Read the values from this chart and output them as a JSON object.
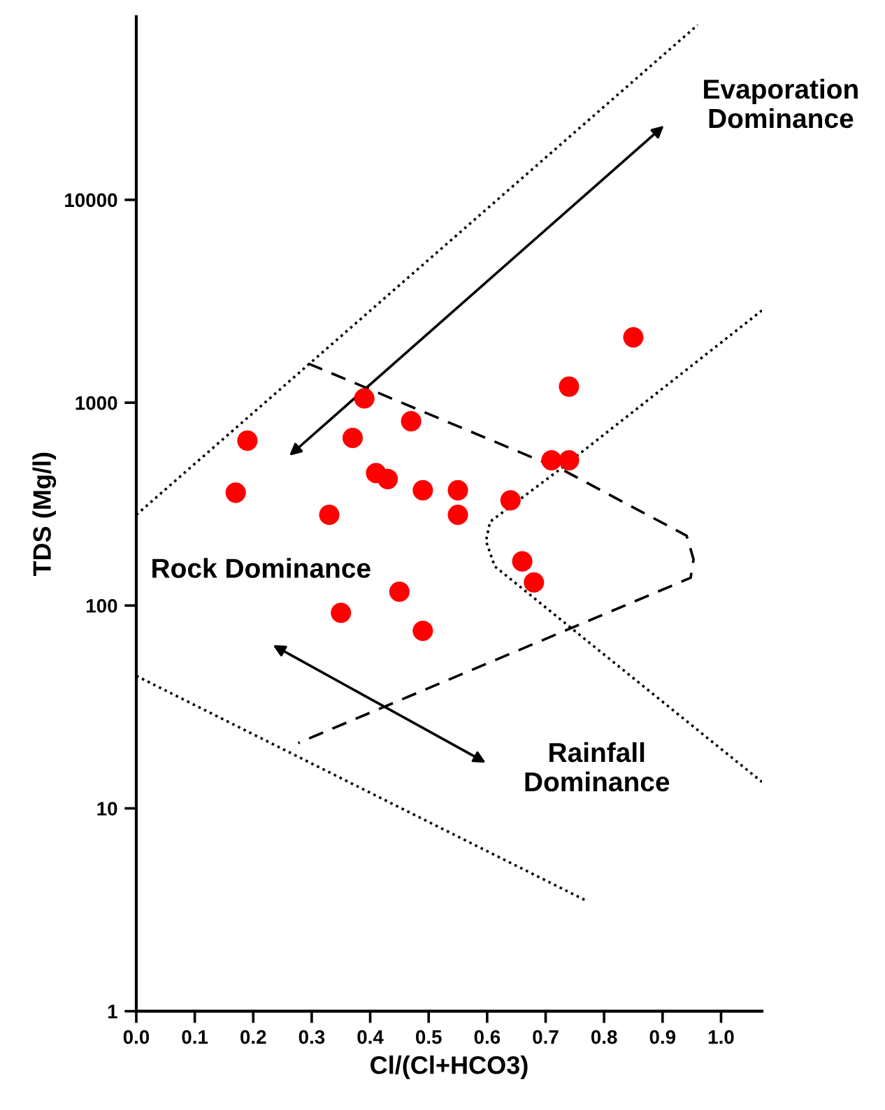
{
  "chart_data": {
    "type": "scatter",
    "xlabel": "Cl/(Cl+HCO3)",
    "ylabel": "TDS (Mg/l)",
    "annotations": [
      "Evaporation\nDominance",
      "Rock Dominance",
      "Rainfall\nDominance"
    ],
    "log": "y",
    "grid": false,
    "legend": false,
    "xlim": [
      0,
      1.07
    ],
    "ylim": [
      1,
      80000
    ],
    "xticks": [
      {
        "value": 0,
        "label": "0.0"
      },
      0.1,
      0.2,
      0.3,
      0.4,
      0.5,
      0.6,
      0.7,
      0.8,
      0.9,
      {
        "value": 1,
        "label": "1.0"
      }
    ],
    "yticks": [
      1,
      10,
      100,
      1000,
      10000
    ],
    "series": [
      {
        "color": "#ff0000",
        "marker": "circle",
        "x": [
          0.19,
          0.39,
          0.37,
          0.47,
          0.41,
          0.43,
          0.49,
          0.55,
          0.17,
          0.64,
          0.71,
          0.74,
          0.74,
          0.85,
          0.33,
          0.55,
          0.66,
          0.68,
          0.45,
          0.35,
          0.49
        ],
        "values": [
          650,
          1050,
          670,
          810,
          450,
          420,
          370,
          370,
          360,
          330,
          520,
          520,
          1200,
          2100,
          280,
          280,
          165,
          130,
          117,
          92,
          75
        ]
      },
      {
        "type": "line",
        "color": "#000000",
        "marker": "none",
        "line_style": "dotted",
        "x": [
          0,
          0.96
        ],
        "values": [
          280,
          72800
        ]
      },
      {
        "type": "line",
        "color": "#000000",
        "marker": "none",
        "line_style": "dotted",
        "x": [
          1.07,
          0.72,
          0.605,
          0.598,
          0.613,
          1.07
        ],
        "values": [
          2850,
          459,
          259,
          208,
          156,
          13.5
        ]
      },
      {
        "type": "line",
        "color": "#000000",
        "marker": "none",
        "line_style": "dotted",
        "x": [
          0,
          0.77
        ],
        "values": [
          45,
          3.5
        ]
      },
      {
        "type": "line",
        "color": "#000000",
        "marker": "none",
        "line_style": "dashed",
        "x": [
          0.294,
          0.733,
          0.941,
          0.953,
          0.948,
          0.277
        ],
        "values": [
          1560,
          460,
          221,
          169,
          137,
          21
        ]
      }
    ]
  }
}
